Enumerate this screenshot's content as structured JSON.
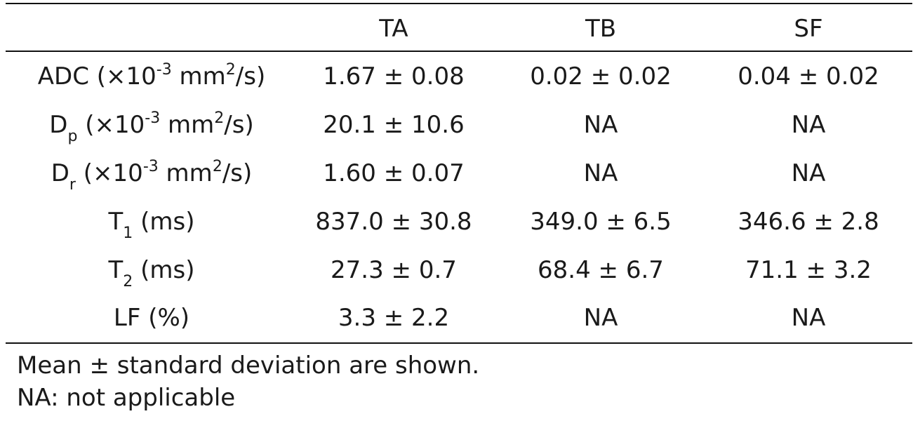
{
  "table": {
    "header": [
      "",
      "TA",
      "TB",
      "SF"
    ],
    "rows": [
      {
        "label": {
          "base": "ADC (",
          "mult": "×",
          "ten": "10",
          "exp": "-3",
          "unit": " mm",
          "unit_sup": "2",
          "tail": "/s)"
        },
        "values": [
          "1.67 ± 0.08",
          "0.02 ± 0.02",
          "0.04 ± 0.02"
        ]
      },
      {
        "label": {
          "base": "D",
          "sub": "p",
          "rest": " (",
          "mult": "×",
          "ten": "10",
          "exp": "-3",
          "unit": " mm",
          "unit_sup": "2",
          "tail": "/s)"
        },
        "values": [
          "20.1 ± 10.6",
          "NA",
          "NA"
        ]
      },
      {
        "label": {
          "base": "D",
          "sub": "r",
          "rest": " (",
          "mult": "×",
          "ten": "10",
          "exp": "-3",
          "unit": " mm",
          "unit_sup": "2",
          "tail": "/s)"
        },
        "values": [
          "1.60 ± 0.07",
          "NA",
          "NA"
        ]
      },
      {
        "label": {
          "base": "T",
          "sub": "1",
          "tail": " (ms)"
        },
        "values": [
          "837.0 ± 30.8",
          "349.0 ± 6.5",
          "346.6 ± 2.8"
        ]
      },
      {
        "label": {
          "base": "T",
          "sub": "2",
          "tail": " (ms)"
        },
        "values": [
          "27.3 ± 0.7",
          "68.4 ± 6.7",
          "71.1 ± 3.2"
        ]
      },
      {
        "label": {
          "base": "LF (%)"
        },
        "values": [
          "3.3 ± 2.2",
          "NA",
          "NA"
        ]
      }
    ]
  },
  "notes": [
    "Mean ± standard deviation are shown.",
    "NA: not applicable"
  ]
}
